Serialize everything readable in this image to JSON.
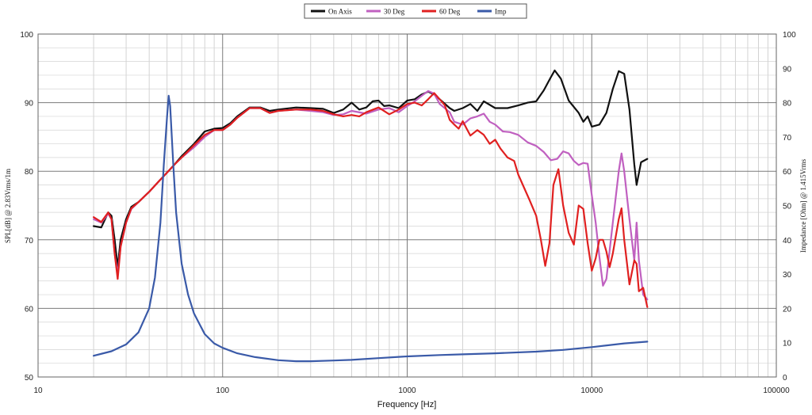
{
  "chart_data": {
    "type": "line",
    "xlabel": "Frequency [Hz]",
    "ylabel": "SPL[dB] @ 2.83Vrms/1m",
    "ylabel_right": "Impedance [Ohm] @ 1.415Vrms",
    "x_scale": "log",
    "xlim": [
      10,
      100000
    ],
    "ylim": [
      50,
      100
    ],
    "ylim_right": [
      0,
      100
    ],
    "x_ticks": [
      "10",
      "100",
      "1000",
      "10000",
      "100000"
    ],
    "y_ticks": [
      "50",
      "60",
      "70",
      "80",
      "90",
      "100"
    ],
    "y_ticks_right": [
      "0",
      "10",
      "20",
      "30",
      "40",
      "50",
      "60",
      "70",
      "80",
      "90",
      "100"
    ],
    "grid": true,
    "legend_position": "top-center",
    "series": [
      {
        "name": "On Axis",
        "color": "#111111",
        "axis": "left",
        "points": [
          [
            20,
            72.0
          ],
          [
            22,
            71.8
          ],
          [
            24,
            74.0
          ],
          [
            25,
            73.5
          ],
          [
            26,
            70.0
          ],
          [
            27,
            66.0
          ],
          [
            28,
            70.0
          ],
          [
            30,
            73.0
          ],
          [
            32,
            74.8
          ],
          [
            35,
            75.5
          ],
          [
            40,
            77.0
          ],
          [
            45,
            78.5
          ],
          [
            50,
            79.8
          ],
          [
            55,
            81.0
          ],
          [
            60,
            82.2
          ],
          [
            70,
            84.0
          ],
          [
            80,
            85.8
          ],
          [
            90,
            86.2
          ],
          [
            100,
            86.3
          ],
          [
            110,
            87.0
          ],
          [
            120,
            88.0
          ],
          [
            140,
            89.3
          ],
          [
            160,
            89.3
          ],
          [
            180,
            88.8
          ],
          [
            200,
            89.0
          ],
          [
            250,
            89.3
          ],
          [
            300,
            89.2
          ],
          [
            350,
            89.1
          ],
          [
            400,
            88.5
          ],
          [
            450,
            89.0
          ],
          [
            500,
            90.0
          ],
          [
            550,
            89.0
          ],
          [
            600,
            89.3
          ],
          [
            650,
            90.2
          ],
          [
            700,
            90.3
          ],
          [
            750,
            89.5
          ],
          [
            800,
            89.6
          ],
          [
            900,
            89.2
          ],
          [
            1000,
            90.3
          ],
          [
            1100,
            90.5
          ],
          [
            1200,
            91.2
          ],
          [
            1300,
            91.6
          ],
          [
            1400,
            91.2
          ],
          [
            1500,
            90.5
          ],
          [
            1700,
            89.2
          ],
          [
            1800,
            88.8
          ],
          [
            2000,
            89.2
          ],
          [
            2200,
            89.8
          ],
          [
            2400,
            88.8
          ],
          [
            2600,
            90.2
          ],
          [
            3000,
            89.2
          ],
          [
            3500,
            89.2
          ],
          [
            4000,
            89.6
          ],
          [
            4500,
            90.0
          ],
          [
            5000,
            90.2
          ],
          [
            5500,
            91.8
          ],
          [
            6000,
            93.7
          ],
          [
            6300,
            94.7
          ],
          [
            6800,
            93.5
          ],
          [
            7500,
            90.3
          ],
          [
            8500,
            88.5
          ],
          [
            9000,
            87.2
          ],
          [
            9500,
            88.0
          ],
          [
            10000,
            86.5
          ],
          [
            11000,
            86.8
          ],
          [
            12000,
            88.5
          ],
          [
            13000,
            92.0
          ],
          [
            14000,
            94.6
          ],
          [
            15000,
            94.2
          ],
          [
            16000,
            89.0
          ],
          [
            17000,
            81.0
          ],
          [
            17500,
            78.0
          ],
          [
            18500,
            81.3
          ],
          [
            20000,
            81.8
          ]
        ]
      },
      {
        "name": "30 Deg",
        "color": "#c060c0",
        "axis": "left",
        "points": [
          [
            20,
            73.0
          ],
          [
            22,
            72.5
          ],
          [
            24,
            73.8
          ],
          [
            25,
            73.0
          ],
          [
            26,
            68.0
          ],
          [
            27,
            65.0
          ],
          [
            28,
            69.0
          ],
          [
            30,
            72.5
          ],
          [
            32,
            74.5
          ],
          [
            35,
            75.5
          ],
          [
            40,
            77.0
          ],
          [
            45,
            78.5
          ],
          [
            50,
            79.8
          ],
          [
            55,
            81.0
          ],
          [
            60,
            82.0
          ],
          [
            70,
            83.5
          ],
          [
            80,
            85.0
          ],
          [
            90,
            86.0
          ],
          [
            100,
            86.0
          ],
          [
            110,
            86.8
          ],
          [
            120,
            87.8
          ],
          [
            140,
            89.2
          ],
          [
            160,
            89.2
          ],
          [
            180,
            88.5
          ],
          [
            200,
            88.8
          ],
          [
            250,
            89.0
          ],
          [
            300,
            88.8
          ],
          [
            350,
            88.6
          ],
          [
            400,
            88.2
          ],
          [
            450,
            88.3
          ],
          [
            500,
            88.8
          ],
          [
            600,
            88.4
          ],
          [
            700,
            89.0
          ],
          [
            800,
            89.2
          ],
          [
            900,
            88.6
          ],
          [
            1000,
            89.5
          ],
          [
            1100,
            90.2
          ],
          [
            1200,
            91.0
          ],
          [
            1300,
            91.7
          ],
          [
            1400,
            91.3
          ],
          [
            1500,
            89.8
          ],
          [
            1700,
            88.6
          ],
          [
            1800,
            87.2
          ],
          [
            2000,
            86.8
          ],
          [
            2200,
            87.7
          ],
          [
            2400,
            88.0
          ],
          [
            2600,
            88.4
          ],
          [
            2800,
            87.2
          ],
          [
            3000,
            86.8
          ],
          [
            3300,
            85.8
          ],
          [
            3600,
            85.7
          ],
          [
            4000,
            85.3
          ],
          [
            4500,
            84.2
          ],
          [
            5000,
            83.7
          ],
          [
            5500,
            82.8
          ],
          [
            6000,
            81.6
          ],
          [
            6500,
            81.8
          ],
          [
            7000,
            82.9
          ],
          [
            7500,
            82.6
          ],
          [
            8000,
            81.5
          ],
          [
            8500,
            80.9
          ],
          [
            9000,
            81.2
          ],
          [
            9500,
            81.1
          ],
          [
            10000,
            76.5
          ],
          [
            10500,
            72.5
          ],
          [
            11000,
            67.5
          ],
          [
            11500,
            63.3
          ],
          [
            12000,
            64.3
          ],
          [
            13000,
            72.5
          ],
          [
            14000,
            80.0
          ],
          [
            14500,
            82.6
          ],
          [
            15000,
            80.0
          ],
          [
            16000,
            73.0
          ],
          [
            17000,
            67.0
          ],
          [
            17500,
            72.5
          ],
          [
            18000,
            67.0
          ],
          [
            19000,
            62.0
          ],
          [
            20000,
            61.3
          ]
        ]
      },
      {
        "name": "60 Deg",
        "color": "#e02020",
        "axis": "left",
        "points": [
          [
            20,
            73.3
          ],
          [
            22,
            72.6
          ],
          [
            24,
            74.0
          ],
          [
            25,
            73.0
          ],
          [
            26,
            68.0
          ],
          [
            27,
            64.3
          ],
          [
            28,
            69.0
          ],
          [
            30,
            72.5
          ],
          [
            32,
            74.6
          ],
          [
            35,
            75.5
          ],
          [
            40,
            77.0
          ],
          [
            45,
            78.5
          ],
          [
            50,
            79.8
          ],
          [
            55,
            81.0
          ],
          [
            60,
            82.0
          ],
          [
            70,
            83.8
          ],
          [
            80,
            85.3
          ],
          [
            90,
            86.0
          ],
          [
            100,
            86.0
          ],
          [
            110,
            86.8
          ],
          [
            120,
            87.8
          ],
          [
            140,
            89.2
          ],
          [
            160,
            89.2
          ],
          [
            180,
            88.5
          ],
          [
            200,
            88.8
          ],
          [
            250,
            89.0
          ],
          [
            300,
            89.0
          ],
          [
            350,
            88.8
          ],
          [
            400,
            88.3
          ],
          [
            450,
            88.0
          ],
          [
            500,
            88.2
          ],
          [
            550,
            88.0
          ],
          [
            600,
            88.6
          ],
          [
            700,
            89.3
          ],
          [
            800,
            88.3
          ],
          [
            900,
            89.0
          ],
          [
            1000,
            89.8
          ],
          [
            1100,
            90.0
          ],
          [
            1200,
            89.6
          ],
          [
            1300,
            90.5
          ],
          [
            1400,
            91.4
          ],
          [
            1500,
            90.5
          ],
          [
            1600,
            89.6
          ],
          [
            1700,
            87.5
          ],
          [
            1800,
            86.8
          ],
          [
            1900,
            86.2
          ],
          [
            2000,
            87.3
          ],
          [
            2100,
            86.2
          ],
          [
            2200,
            85.2
          ],
          [
            2400,
            86.0
          ],
          [
            2600,
            85.3
          ],
          [
            2800,
            84.0
          ],
          [
            3000,
            84.6
          ],
          [
            3200,
            83.3
          ],
          [
            3500,
            82.0
          ],
          [
            3800,
            81.5
          ],
          [
            4000,
            79.5
          ],
          [
            4300,
            77.6
          ],
          [
            4600,
            75.8
          ],
          [
            5000,
            73.5
          ],
          [
            5300,
            70.0
          ],
          [
            5600,
            66.2
          ],
          [
            5900,
            69.5
          ],
          [
            6200,
            78.0
          ],
          [
            6600,
            80.3
          ],
          [
            7000,
            75.0
          ],
          [
            7500,
            71.0
          ],
          [
            8000,
            69.3
          ],
          [
            8500,
            75.0
          ],
          [
            9000,
            74.5
          ],
          [
            9500,
            69.5
          ],
          [
            10000,
            65.5
          ],
          [
            10500,
            67.3
          ],
          [
            11000,
            70.0
          ],
          [
            11500,
            70.0
          ],
          [
            12000,
            68.3
          ],
          [
            12500,
            66.0
          ],
          [
            13000,
            68.0
          ],
          [
            14000,
            73.0
          ],
          [
            14500,
            74.6
          ],
          [
            15000,
            70.0
          ],
          [
            16000,
            63.5
          ],
          [
            17000,
            67.0
          ],
          [
            17500,
            66.5
          ],
          [
            18000,
            62.5
          ],
          [
            19000,
            63.0
          ],
          [
            20000,
            60.2
          ]
        ]
      },
      {
        "name": "Imp",
        "color": "#3a5aa8",
        "axis": "right",
        "points": [
          [
            20,
            6.2
          ],
          [
            25,
            7.5
          ],
          [
            30,
            9.5
          ],
          [
            35,
            13.0
          ],
          [
            40,
            20.0
          ],
          [
            43,
            29.0
          ],
          [
            46,
            45.0
          ],
          [
            48,
            62.0
          ],
          [
            50,
            76.0
          ],
          [
            51,
            82.0
          ],
          [
            52,
            79.0
          ],
          [
            54,
            62.0
          ],
          [
            56,
            48.0
          ],
          [
            60,
            33.0
          ],
          [
            65,
            24.0
          ],
          [
            70,
            18.5
          ],
          [
            80,
            12.5
          ],
          [
            90,
            9.8
          ],
          [
            100,
            8.5
          ],
          [
            120,
            6.9
          ],
          [
            150,
            5.8
          ],
          [
            200,
            4.9
          ],
          [
            250,
            4.6
          ],
          [
            300,
            4.6
          ],
          [
            400,
            4.8
          ],
          [
            500,
            5.0
          ],
          [
            700,
            5.5
          ],
          [
            1000,
            6.0
          ],
          [
            1500,
            6.4
          ],
          [
            2000,
            6.6
          ],
          [
            3000,
            6.9
          ],
          [
            5000,
            7.4
          ],
          [
            7000,
            7.9
          ],
          [
            10000,
            8.7
          ],
          [
            15000,
            9.8
          ],
          [
            20000,
            10.3
          ]
        ]
      }
    ]
  }
}
